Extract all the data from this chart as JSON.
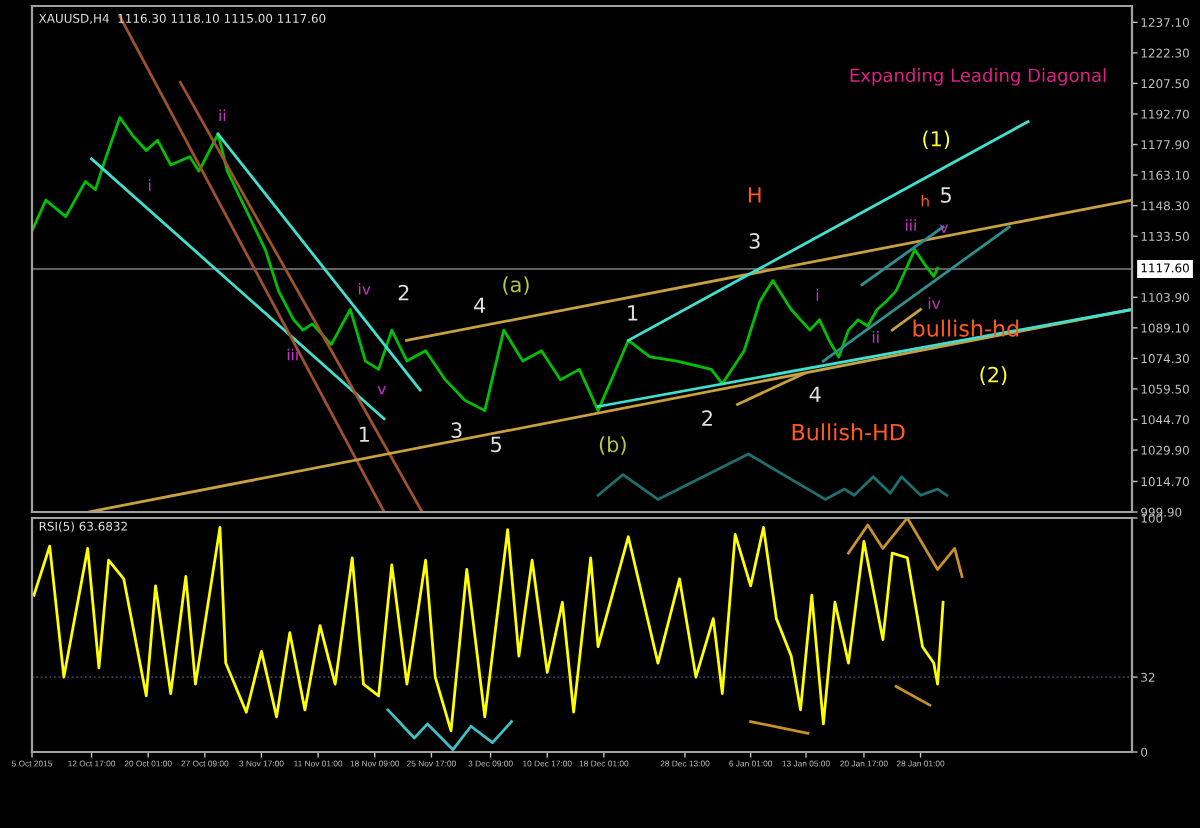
{
  "chart_data": [
    {
      "type": "line",
      "title": "XAUUSD,H4  1116.30 1118.10 1115.00 1117.60",
      "xlim": [
        "2015-10-05T00:00",
        "2016-02-24T10:00"
      ],
      "ylim": [
        999.9,
        1245
      ],
      "tick_labels": "y",
      "grid": false,
      "legend": false,
      "marker": "none",
      "line_style": "solid",
      "yticks": [
        {
          "value": 999.9,
          "label": "999.90"
        },
        {
          "value": 1014.7,
          "label": "1014.70"
        },
        {
          "value": 1029.9,
          "label": "1029.90"
        },
        {
          "value": 1044.7,
          "label": "1044.70"
        },
        {
          "value": 1059.5,
          "label": "1059.50"
        },
        {
          "value": 1074.3,
          "label": "1074.30"
        },
        {
          "value": 1089.1,
          "label": "1089.10"
        },
        {
          "value": 1103.9,
          "label": "1103.90"
        },
        {
          "value": 1133.5,
          "label": "1133.50"
        },
        {
          "value": 1148.3,
          "label": "1148.30"
        },
        {
          "value": 1163.1,
          "label": "1163.10"
        },
        {
          "value": 1177.9,
          "label": "1177.90"
        },
        {
          "value": 1192.7,
          "label": "1192.70"
        },
        {
          "value": 1207.5,
          "label": "1207.50"
        },
        {
          "value": 1222.3,
          "label": "1222.30"
        },
        {
          "value": 1237.1,
          "label": "1237.10"
        }
      ],
      "ref_lines": [
        {
          "axis": "y",
          "value": 1117.6,
          "label": "1117.60",
          "color": "#808080"
        }
      ],
      "series": [
        {
          "color": "#00c000",
          "x": [
            "2015-10-05T00:00",
            "2015-10-06T19:00",
            "2015-10-09T09:00",
            "2015-10-11T22:00",
            "2015-10-13T05:00",
            "2015-10-14T10:00",
            "2015-10-16T09:00",
            "2015-10-18T02:00",
            "2015-10-19T19:00",
            "2015-10-21T06:00",
            "2015-10-22T23:00",
            "2015-10-25T10:00",
            "2015-10-26T15:00",
            "2015-10-29T02:00",
            "2015-10-30T07:00",
            "2015-11-01T18:00",
            "2015-11-04T05:00",
            "2015-11-05T22:00",
            "2015-11-07T21:00",
            "2015-11-09T02:00",
            "2015-11-10T07:00",
            "2015-11-12T18:00",
            "2015-11-15T05:00",
            "2015-11-17T04:00",
            "2015-11-18T21:00",
            "2015-11-20T14:00",
            "2015-11-22T13:00",
            "2015-11-24T23:00",
            "2015-11-27T12:00",
            "2015-11-30T01:00",
            "2015-12-02T15:00",
            "2015-12-05T02:00",
            "2015-12-07T13:00",
            "2015-12-09T23:00",
            "2015-12-12T10:00",
            "2015-12-14T21:00",
            "2015-12-17T07:00",
            "2015-12-21T05:00",
            "2015-12-24T00:00",
            "2015-12-27T12:00",
            "2015-12-31T23:00",
            "2016-01-02T09:00",
            "2016-01-05T05:00",
            "2016-01-07T06:00",
            "2016-01-08T22:00",
            "2016-01-11T07:00",
            "2016-01-13T17:00",
            "2016-01-14T23:00",
            "2016-01-16T05:00",
            "2016-01-17T11:00",
            "2016-01-18T17:00",
            "2016-01-19T23:00",
            "2016-01-21T05:00",
            "2016-01-22T10:00",
            "2016-01-23T15:00",
            "2016-01-24T21:00",
            "2016-01-26T02:00",
            "2016-01-27T07:00",
            "2016-01-28T13:00",
            "2016-01-29T18:00",
            "2016-01-30T06:00"
          ],
          "values": [
            1136,
            1151,
            1143,
            1160,
            1156,
            1170,
            1191,
            1182,
            1175,
            1180,
            1168,
            1172,
            1165,
            1183,
            1165,
            1146,
            1127,
            1107,
            1093,
            1088,
            1091,
            1081,
            1098,
            1073,
            1069,
            1088,
            1073,
            1078,
            1064,
            1054,
            1049,
            1088,
            1073,
            1078,
            1064,
            1069,
            1049,
            1083,
            1075,
            1073,
            1069,
            1062,
            1078,
            1102,
            1112,
            1098,
            1088,
            1093,
            1083,
            1075,
            1088,
            1093,
            1090,
            1098,
            1102,
            1107,
            1117,
            1127,
            1120,
            1114,
            1118
          ]
        },
        {
          "color": "#40e0d0",
          "x": [
            "2015-10-12T17:00",
            "2015-11-19T14:00"
          ],
          "values": [
            1171,
            1045
          ]
        },
        {
          "color": "#40e0d0",
          "x": [
            "2015-10-29T02:00",
            "2015-11-24T06:00"
          ],
          "values": [
            1183,
            1059
          ]
        },
        {
          "color": "#a0522d",
          "x": [
            "2015-10-16T09:00",
            "2015-11-19T14:00"
          ],
          "values": [
            1240,
            1000
          ]
        },
        {
          "color": "#a0522d",
          "x": [
            "2015-10-24T05:00",
            "2015-11-24T12:00"
          ],
          "values": [
            1208,
            1000
          ]
        },
        {
          "color": "#c8a040",
          "x": [
            "2015-10-12T11:00",
            "2016-02-24T10:00"
          ],
          "values": [
            1000,
            1098
          ]
        },
        {
          "color": "#c8a040",
          "x": [
            "2015-11-22T12:00",
            "2016-02-24T10:00"
          ],
          "values": [
            1083,
            1151
          ]
        },
        {
          "color": "#40e0d0",
          "x": [
            "2015-12-21T05:00",
            "2016-02-10T23:00"
          ],
          "values": [
            1083,
            1189
          ]
        },
        {
          "color": "#40e0d0",
          "x": [
            "2015-12-17T07:00",
            "2016-02-24T10:00"
          ],
          "values": [
            1051,
            1098
          ]
        },
        {
          "color": "#2f8f8f",
          "x": [
            "2016-01-15T11:00",
            "2016-02-08T13:00"
          ],
          "values": [
            1073,
            1138
          ]
        },
        {
          "color": "#2f8f8f",
          "x": [
            "2016-01-20T11:00",
            "2016-01-30T23:00"
          ],
          "values": [
            1110,
            1138
          ]
        },
        {
          "color": "#c8a040",
          "x": [
            "2016-01-04T08:00",
            "2016-01-12T23:00"
          ],
          "values": [
            1052,
            1067
          ]
        },
        {
          "color": "#c8a040",
          "x": [
            "2016-01-24T09:00",
            "2016-01-28T01:00"
          ],
          "values": [
            1088,
            1098
          ]
        },
        {
          "color": "#1f6f6f",
          "x": [
            "2015-12-17T07:00",
            "2015-12-20T12:00",
            "2015-12-25T01:00",
            "2016-01-05T18:00",
            "2016-01-15T17:00",
            "2016-01-18T05:00",
            "2016-01-19T11:00",
            "2016-01-21T22:00",
            "2016-01-24T03:00",
            "2016-01-25T14:00",
            "2016-01-28T01:00",
            "2016-01-30T06:00",
            "2016-01-31T11:00"
          ],
          "values": [
            1008,
            1018,
            1006,
            1028,
            1006,
            1011,
            1008,
            1017,
            1009,
            1017,
            1008,
            1011,
            1008
          ]
        }
      ],
      "annotations": [
        "Expanding Leading Diagonal",
        "i",
        "ii",
        "iii",
        "iv",
        "v",
        "1",
        "2",
        "3",
        "4",
        "5",
        "(a)",
        "(b)",
        "1",
        "2",
        "3",
        "H",
        "4",
        "5",
        "(1)",
        "(2)",
        "i",
        "ii",
        "iii",
        "iv",
        "v",
        "h",
        "bullish-hd",
        "Bullish-HD"
      ]
    },
    {
      "type": "line",
      "title": "RSI(5) 63.6832",
      "xlim": [
        "2015-10-05T00:00",
        "2016-02-24T10:00"
      ],
      "ylim": [
        0,
        100
      ],
      "yticks": [
        100,
        32,
        0
      ],
      "grid": false,
      "legend": false,
      "marker": "none",
      "line_style": "solid",
      "xticks": [
        {
          "value": "2015-10-05T00:00",
          "label": "5 Oct 2015"
        },
        {
          "value": "2015-10-12T17:00",
          "label": "12 Oct 17:00"
        },
        {
          "value": "2015-10-20T01:00",
          "label": "20 Oct 01:00"
        },
        {
          "value": "2015-10-27T09:00",
          "label": "27 Oct 09:00"
        },
        {
          "value": "2015-11-03T17:00",
          "label": "3 Nov 17:00"
        },
        {
          "value": "2015-11-11T01:00",
          "label": "11 Nov 01:00"
        },
        {
          "value": "2015-11-18T09:00",
          "label": "18 Nov 09:00"
        },
        {
          "value": "2015-11-25T17:00",
          "label": "25 Nov 17:00"
        },
        {
          "value": "2015-12-03T09:00",
          "label": "3 Dec 09:00"
        },
        {
          "value": "2015-12-10T17:00",
          "label": "10 Dec 17:00"
        },
        {
          "value": "2015-12-18T01:00",
          "label": "18 Dec 01:00"
        },
        {
          "value": "2015-12-28T13:00",
          "label": "28 Dec 13:00"
        },
        {
          "value": "2016-01-06T01:00",
          "label": "6 Jan 01:00"
        },
        {
          "value": "2016-01-13T05:00",
          "label": "13 Jan 05:00"
        },
        {
          "value": "2016-01-20T17:00",
          "label": "20 Jan 17:00"
        },
        {
          "value": "2016-01-28T01:00",
          "label": "28 Jan 01:00"
        }
      ],
      "ref_lines": [
        {
          "axis": "y",
          "value": 32,
          "color": "#404060",
          "line_style": "dotted"
        }
      ],
      "series": [
        {
          "color": "#ffff00",
          "x": [
            "2015-10-05T06:00",
            "2015-10-07T07:00",
            "2015-10-09T03:00",
            "2015-10-12T05:00",
            "2015-10-13T16:00",
            "2015-10-14T22:00",
            "2015-10-16T21:00",
            "2015-10-19T19:00",
            "2015-10-21T00:00",
            "2015-10-22T23:00",
            "2015-10-24T22:00",
            "2015-10-26T04:00",
            "2015-10-29T08:00",
            "2015-10-30T02:00",
            "2015-11-01T18:00",
            "2015-11-03T17:00",
            "2015-11-05T16:00",
            "2015-11-07T09:00",
            "2015-11-09T08:00",
            "2015-11-11T07:00",
            "2015-11-13T06:00",
            "2015-11-15T11:00",
            "2015-11-16T22:00",
            "2015-11-18T21:00",
            "2015-11-20T14:00",
            "2015-11-22T13:00",
            "2015-11-24T23:00",
            "2015-11-26T05:00",
            "2015-11-28T06:00",
            "2015-11-30T07:00",
            "2015-12-02T15:00",
            "2015-12-05T14:00",
            "2015-12-07T01:00",
            "2015-12-08T18:00",
            "2015-12-10T17:00",
            "2015-12-12T16:00",
            "2015-12-14T03:00",
            "2015-12-16T08:00",
            "2015-12-17T07:00",
            "2015-12-21T05:00",
            "2015-12-25T01:00",
            "2015-12-27T20:00",
            "2015-12-29T23:00",
            "2016-01-01T05:00",
            "2016-01-02T09:00",
            "2016-01-04T01:00",
            "2016-01-06T01:00",
            "2016-01-07T17:00",
            "2016-01-09T09:00",
            "2016-01-11T07:00",
            "2016-01-12T12:00",
            "2016-01-13T23:00",
            "2016-01-15T11:00",
            "2016-01-16T23:00",
            "2016-01-18T17:00",
            "2016-01-20T17:00",
            "2016-01-23T04:00",
            "2016-01-24T09:00",
            "2016-01-26T08:00",
            "2016-01-28T07:00",
            "2016-01-29T18:00",
            "2016-01-30T06:00",
            "2016-01-30T23:00"
          ],
          "values": [
            67,
            88,
            32,
            87,
            36,
            82,
            74,
            24,
            71,
            25,
            75,
            29,
            96,
            38,
            17,
            43,
            15,
            51,
            18,
            54,
            29,
            83,
            29,
            24,
            80,
            29,
            82,
            32,
            9,
            78,
            15,
            95,
            41,
            82,
            34,
            64,
            17,
            83,
            45,
            92,
            38,
            74,
            32,
            57,
            25,
            93,
            71,
            96,
            57,
            41,
            18,
            67,
            12,
            64,
            38,
            90,
            48,
            85,
            83,
            45,
            38,
            29,
            64
          ]
        },
        {
          "color": "#40c0c8",
          "x": [
            "2015-11-20T02:00",
            "2015-11-23T12:00",
            "2015-11-25T05:00",
            "2015-11-28T12:00",
            "2015-11-30T20:00",
            "2015-12-03T15:00",
            "2015-12-06T02:00"
          ],
          "values": [
            18,
            6,
            12,
            1,
            11,
            4,
            13
          ]
        },
        {
          "color": "#c8902a",
          "x": [
            "2016-01-06T01:00",
            "2016-01-13T11:00"
          ],
          "values": [
            13,
            8
          ]
        },
        {
          "color": "#c8902a",
          "x": [
            "2016-01-24T21:00",
            "2016-01-29T06:00"
          ],
          "values": [
            28,
            20
          ]
        },
        {
          "color": "#c8902a",
          "x": [
            "2016-01-18T17:00",
            "2016-01-21T05:00",
            "2016-01-23T04:00",
            "2016-01-26T08:00",
            "2016-01-30T06:00",
            "2016-02-01T11:00",
            "2016-02-02T10:00"
          ],
          "values": [
            85,
            97,
            87,
            100,
            78,
            87,
            75
          ]
        }
      ]
    }
  ]
}
